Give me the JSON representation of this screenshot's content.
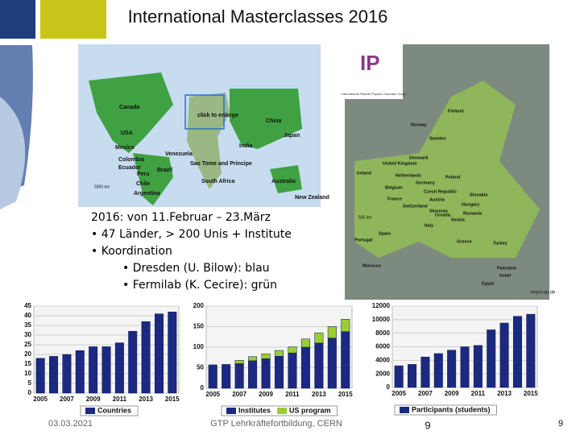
{
  "title": "International Masterclasses 2016",
  "world_map": {
    "labels": [
      "Canada",
      "USA",
      "Mexico",
      "Venezuela",
      "Colombia",
      "Ecuador",
      "Peru",
      "Brazil",
      "Chile",
      "Argentina",
      "click to enlarge",
      "Sao Tome and Principe",
      "South Africa",
      "India",
      "China",
      "Japan",
      "Australia",
      "New Zealand"
    ],
    "scale": "5000 km"
  },
  "logo": {
    "text": "International Particle Physics Outreach Group"
  },
  "europe_map": {
    "labels": [
      "Finland",
      "Norway",
      "Sweden",
      "Denmark",
      "United Kingdom",
      "Ireland",
      "Netherlands",
      "Germany",
      "Belgium",
      "Poland",
      "Czech Republic",
      "Slovakia",
      "Austria",
      "Hungary",
      "France",
      "Switzerland",
      "Slovenia",
      "Croatia",
      "Romania",
      "Serbia",
      "Italy",
      "Spain",
      "Portugal",
      "Greece",
      "Turkey",
      "Morocco",
      "Palestine",
      "Israel",
      "Egypt"
    ],
    "scale": "500 km",
    "credit": "stepmap.de"
  },
  "bullets": [
    "2016: von 11.Februar – 23.März",
    "• 47 Länder, > 200 Unis + Institute",
    "• Koordination",
    "• Dresden (U. Bilow): blau",
    "• Fermilab (K. Cecire): grün"
  ],
  "chart_data": [
    {
      "type": "bar",
      "categories": [
        "2005",
        null,
        "2007",
        null,
        "2009",
        null,
        "2011",
        null,
        "2013",
        null,
        "2015"
      ],
      "series": [
        {
          "name": "Countries",
          "color": "#1b2a80",
          "values": [
            18,
            19,
            20,
            22,
            24,
            24,
            26,
            32,
            37,
            41,
            42
          ]
        }
      ],
      "ylim": [
        0,
        45
      ],
      "yticks": [
        0,
        5,
        10,
        15,
        20,
        25,
        30,
        35,
        40,
        45
      ],
      "grid": true
    },
    {
      "type": "bar",
      "categories": [
        "2005",
        null,
        "2007",
        null,
        "2009",
        null,
        "2011",
        null,
        "2013",
        null,
        "2015"
      ],
      "series": [
        {
          "name": "Institutes",
          "color": "#1b2a80",
          "values": [
            57,
            58,
            60,
            67,
            72,
            78,
            86,
            100,
            110,
            122,
            138
          ]
        },
        {
          "name": "US program",
          "color": "#9acd32",
          "values": [
            0,
            0,
            8,
            10,
            12,
            14,
            15,
            20,
            25,
            28,
            30
          ]
        }
      ],
      "ylim": [
        0,
        200
      ],
      "yticks": [
        0,
        50,
        100,
        150,
        200
      ],
      "grid": true
    },
    {
      "type": "bar",
      "categories": [
        "2005",
        null,
        "2007",
        null,
        "2009",
        null,
        "2011",
        null,
        "2013",
        null,
        "2015"
      ],
      "series": [
        {
          "name": "Participants (students)",
          "color": "#1b2a80",
          "values": [
            3200,
            3400,
            4500,
            5000,
            5500,
            6000,
            6200,
            8500,
            9500,
            10500,
            10800
          ]
        }
      ],
      "ylim": [
        0,
        12000
      ],
      "yticks": [
        0,
        2000,
        4000,
        6000,
        8000,
        10000,
        12000
      ],
      "grid": true
    }
  ],
  "footer": {
    "date": "03.03.2021",
    "event": "GTP Lehrkräftefortbildung, CERN",
    "page_center": "9",
    "page_right": "9"
  }
}
